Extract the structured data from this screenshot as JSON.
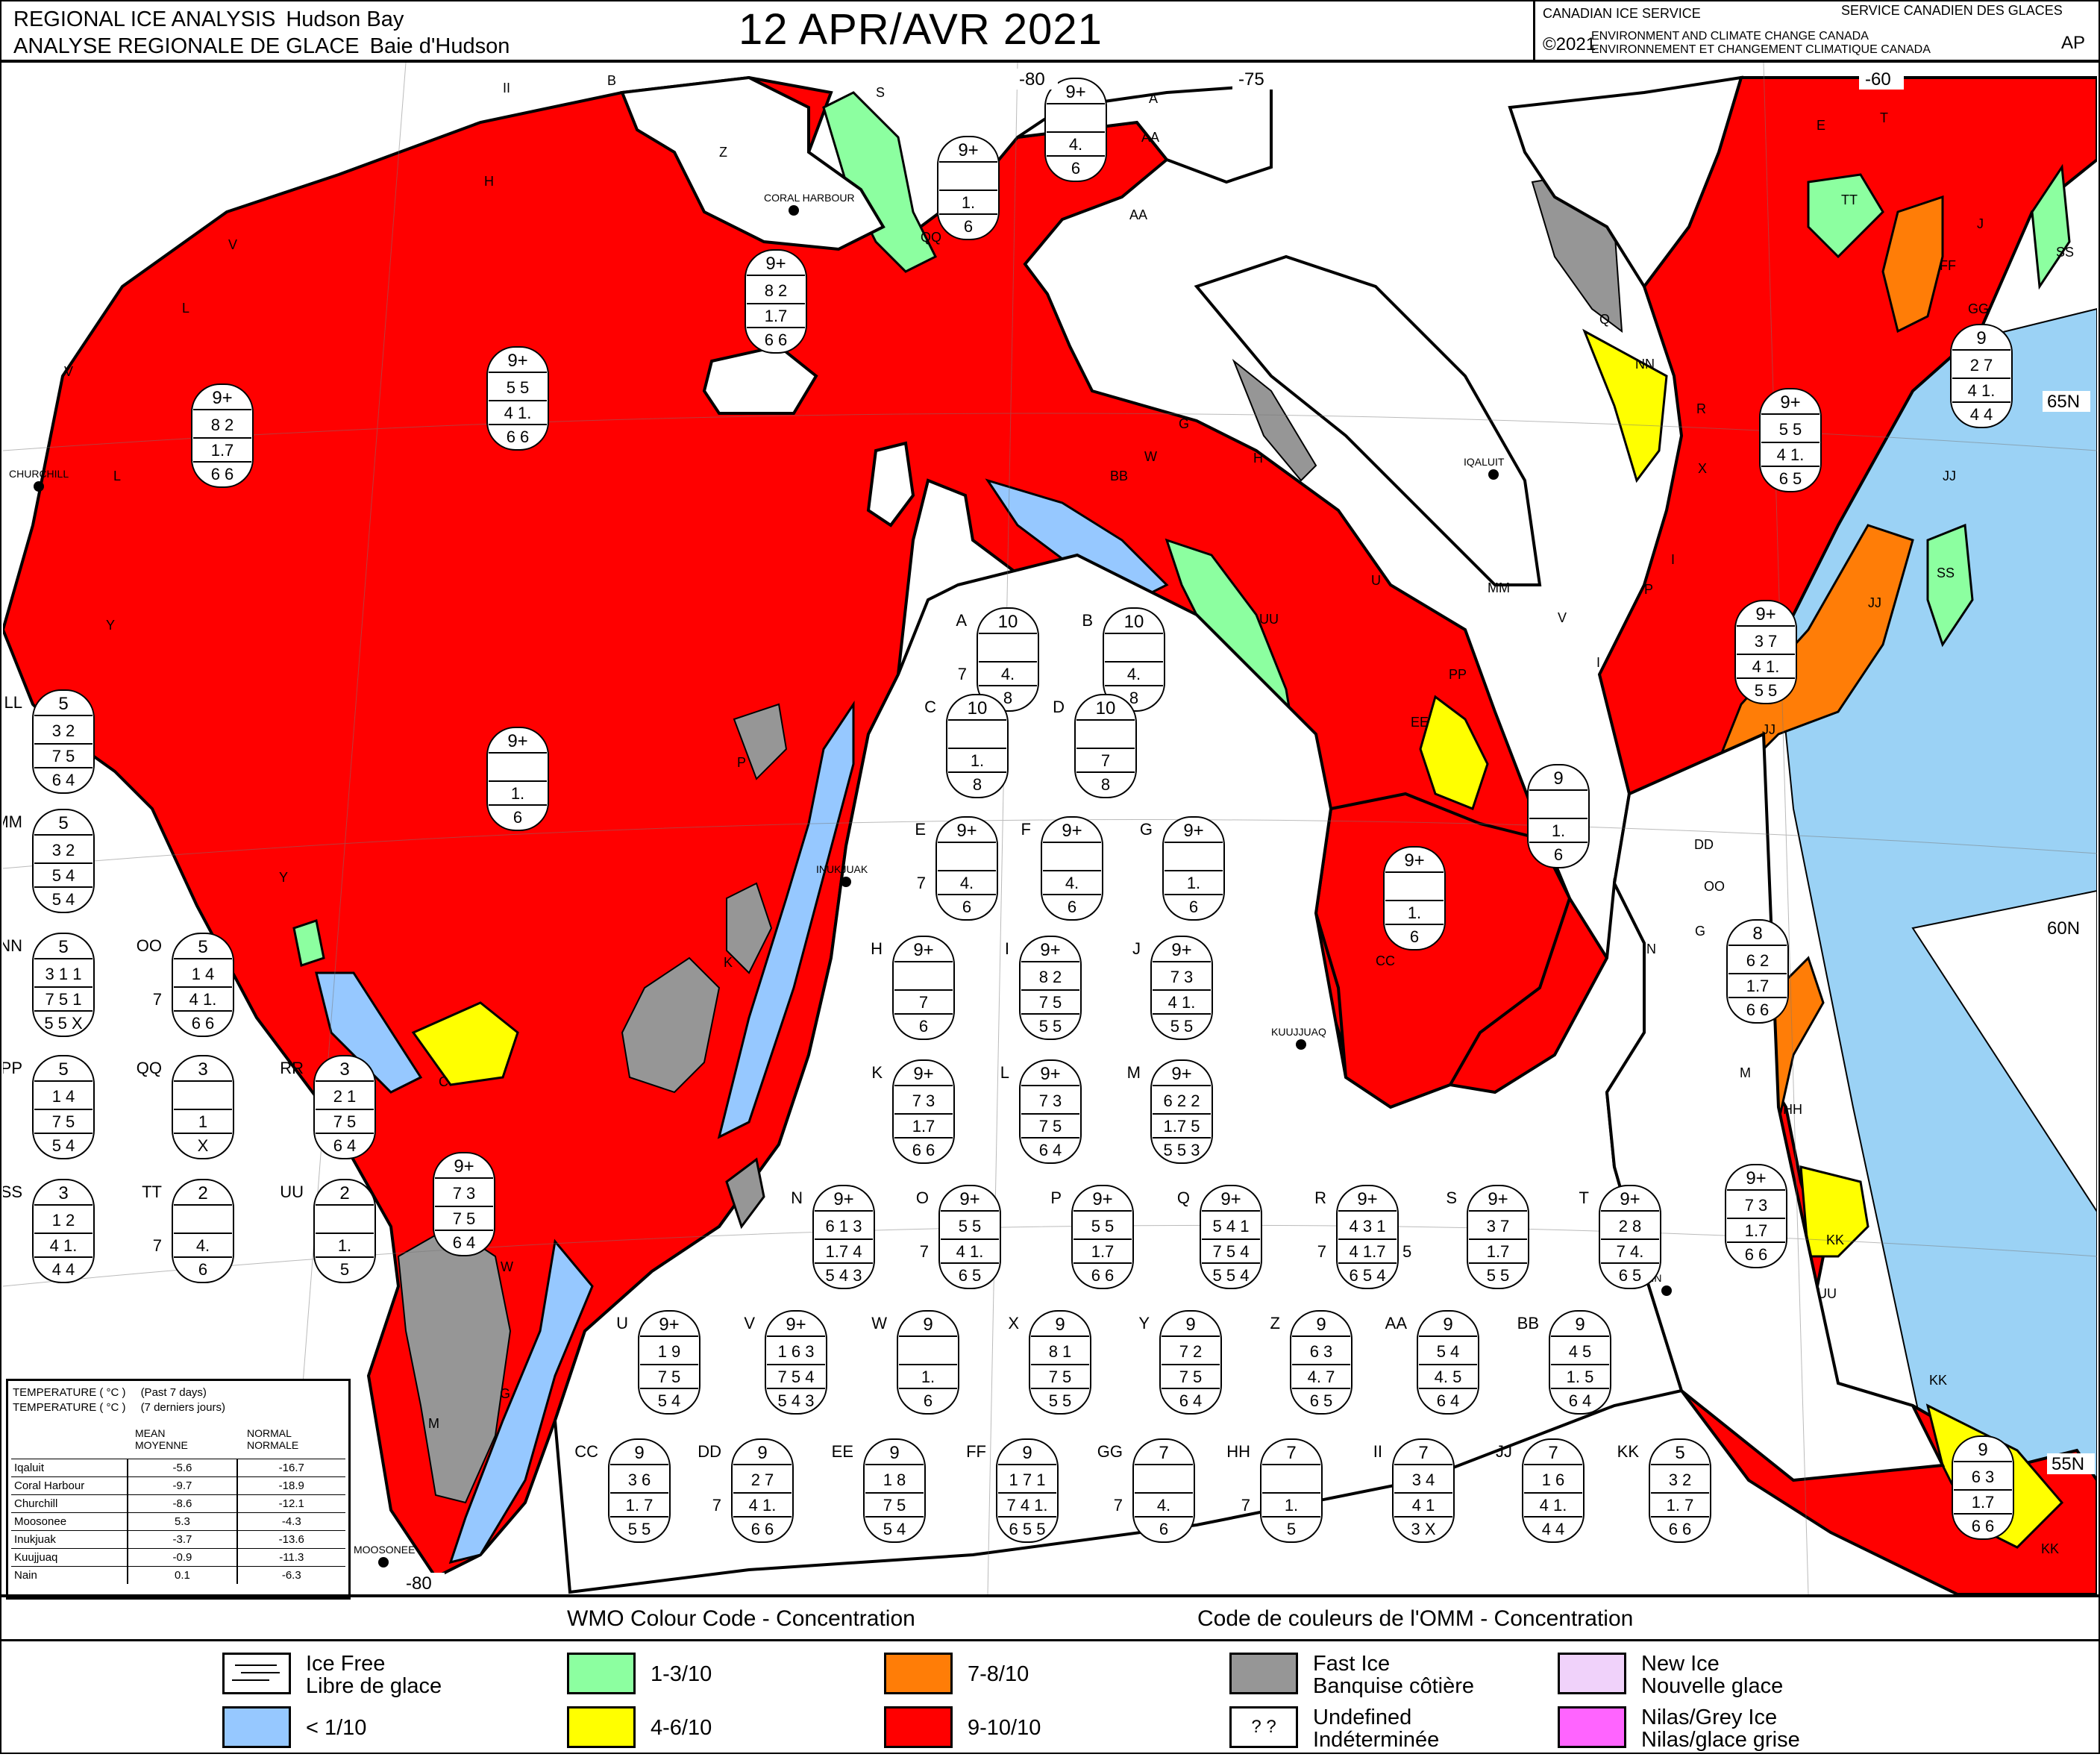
{
  "header": {
    "title_en": "REGIONAL ICE ANALYSIS",
    "region_en": "Hudson Bay",
    "title_fr": "ANALYSE REGIONALE DE GLACE",
    "region_fr": "Baie d'Hudson",
    "date": "12 APR/AVR 2021",
    "agency_en": "CANADIAN ICE SERVICE",
    "agency_fr": "SERVICE CANADIEN DES GLACES",
    "copyright": "©2021",
    "dept_en": "ENVIRONMENT AND CLIMATE CHANGE CANADA",
    "dept_fr": "ENVIRONNEMENT ET CHANGEMENT CLIMATIQUE CANADA",
    "product_code": "AP"
  },
  "map": {
    "longitude_labels": [
      "-80",
      "-75",
      "-60",
      "-80"
    ],
    "latitude_labels": [
      "65N",
      "60N",
      "55N"
    ],
    "places": [
      "CORAL HARBOUR",
      "CHURCHILL",
      "IQALUIT",
      "INUKJUAK",
      "KUUJJUAQ",
      "NAIN",
      "MOOSONEE"
    ],
    "colors": {
      "ice_free": "#ffffff",
      "lt_1_10": "#96c8ff",
      "c1_3_10": "#8cffa0",
      "c4_6_10": "#ffff00",
      "c7_8_10": "#ff7d07",
      "c9_10_10": "#ff0000",
      "fast_ice": "#969696",
      "new_ice": "#f0d2fa",
      "nilas_grey": "#ff64ff",
      "water_outside": "#9bd2f5",
      "land": "#ffffff"
    },
    "region_letters": [
      "B",
      "II",
      "H",
      "V",
      "L",
      "Y",
      "C",
      "W",
      "G",
      "M",
      "K",
      "P",
      "S",
      "QQ",
      "Z",
      "AA",
      "R",
      "NN",
      "Q",
      "TT",
      "E",
      "T",
      "J",
      "FF",
      "GG",
      "SS",
      "X",
      "JJ",
      "MM",
      "PP",
      "EE",
      "U",
      "UU",
      "I",
      "DD",
      "OO",
      "N",
      "HH",
      "KK",
      "CC",
      "A",
      "D",
      "RR",
      "LL",
      "BB"
    ],
    "map_eggs": [
      {
        "c": "9+",
        "r2": "",
        "r3": "4.",
        "r4": "6"
      },
      {
        "c": "9+",
        "r2": "",
        "r3": "1.",
        "r4": "6"
      },
      {
        "c": "9+",
        "r2": "8 2",
        "r3": "1.7",
        "r4": "6 6"
      },
      {
        "c": "9+",
        "r2": "5 5",
        "r3": "4 1.",
        "r4": "6 6"
      },
      {
        "c": "9+",
        "r2": "8 2",
        "r3": "1.7",
        "r4": "6 6"
      },
      {
        "c": "9+",
        "r2": "",
        "r3": "1.",
        "r4": "6"
      },
      {
        "c": "9+",
        "r2": "7 3",
        "r3": "7 5",
        "r4": "6 4"
      },
      {
        "c": "9",
        "r2": "",
        "r3": "1.",
        "r4": "6"
      },
      {
        "c": "9+",
        "r2": "",
        "r3": "1.",
        "r4": "6"
      },
      {
        "c": "9",
        "r2": "2 7",
        "r3": "4 1.",
        "r4": "4 4"
      },
      {
        "c": "9+",
        "r2": "5 5",
        "r3": "4 1.",
        "r4": "6 5"
      },
      {
        "c": "9+",
        "r2": "3 7",
        "r3": "4 1.",
        "r4": "5 5"
      },
      {
        "c": "8",
        "r2": "6 2",
        "r3": "1.7",
        "r4": "6 6"
      },
      {
        "c": "9+",
        "r2": "7 3",
        "r3": "1.7",
        "r4": "6 6"
      },
      {
        "c": "9",
        "r2": "6 3",
        "r3": "1.7",
        "r4": "6 6"
      }
    ]
  },
  "egg_codes": [
    {
      "id": "A",
      "c": "10",
      "r2": "",
      "r3": "4.",
      "r4": "8",
      "side": "7"
    },
    {
      "id": "B",
      "c": "10",
      "r2": "",
      "r3": "4.",
      "r4": "8",
      "side": ""
    },
    {
      "id": "C",
      "c": "10",
      "r2": "",
      "r3": "1.",
      "r4": "8",
      "side": ""
    },
    {
      "id": "D",
      "c": "10",
      "r2": "",
      "r3": "7",
      "r4": "8",
      "side": ""
    },
    {
      "id": "E",
      "c": "9+",
      "r2": "",
      "r3": "4.",
      "r4": "6",
      "side": "7"
    },
    {
      "id": "F",
      "c": "9+",
      "r2": "",
      "r3": "4.",
      "r4": "6",
      "side": ""
    },
    {
      "id": "G",
      "c": "9+",
      "r2": "",
      "r3": "1.",
      "r4": "6",
      "side": ""
    },
    {
      "id": "H",
      "c": "9+",
      "r2": "",
      "r3": "7",
      "r4": "6",
      "side": ""
    },
    {
      "id": "I",
      "c": "9+",
      "r2": "8 2",
      "r3": "7 5",
      "r4": "5 5",
      "side": ""
    },
    {
      "id": "J",
      "c": "9+",
      "r2": "7 3",
      "r3": "4 1.",
      "r4": "5 5",
      "side": ""
    },
    {
      "id": "K",
      "c": "9+",
      "r2": "7 3",
      "r3": "1.7",
      "r4": "6 6",
      "side": ""
    },
    {
      "id": "L",
      "c": "9+",
      "r2": "7 3",
      "r3": "7 5",
      "r4": "6 4",
      "side": ""
    },
    {
      "id": "M",
      "c": "9+",
      "r2": "6 2 2",
      "r3": "1.7 5",
      "r4": "5 5 3",
      "side": ""
    },
    {
      "id": "N",
      "c": "9+",
      "r2": "6 1 3",
      "r3": "1.7 4",
      "r4": "5 4 3",
      "side": ""
    },
    {
      "id": "O",
      "c": "9+",
      "r2": "5 5",
      "r3": "4 1.",
      "r4": "6 5",
      "side": "7"
    },
    {
      "id": "P",
      "c": "9+",
      "r2": "5 5",
      "r3": "1.7",
      "r4": "6 6",
      "side": ""
    },
    {
      "id": "Q",
      "c": "9+",
      "r2": "5 4 1",
      "r3": "7 5 4",
      "r4": "5 5 4",
      "side": ""
    },
    {
      "id": "R",
      "c": "9+",
      "r2": "4 3 1",
      "r3": "4 1.7",
      "r4": "6 5 4",
      "side": "7",
      "side_r": "5"
    },
    {
      "id": "S",
      "c": "9+",
      "r2": "3 7",
      "r3": "1.7",
      "r4": "5 5",
      "side": ""
    },
    {
      "id": "T",
      "c": "9+",
      "r2": "2 8",
      "r3": "7 4.",
      "r4": "6 5",
      "side": ""
    },
    {
      "id": "U",
      "c": "9+",
      "r2": "1 9",
      "r3": "7 5",
      "r4": "5 4",
      "side": ""
    },
    {
      "id": "V",
      "c": "9+",
      "r2": "1 6 3",
      "r3": "7 5 4",
      "r4": "5 4 3",
      "side": ""
    },
    {
      "id": "W",
      "c": "9",
      "r2": "",
      "r3": "1.",
      "r4": "6",
      "side": ""
    },
    {
      "id": "X",
      "c": "9",
      "r2": "8 1",
      "r3": "7 5",
      "r4": "5 5",
      "side": ""
    },
    {
      "id": "Y",
      "c": "9",
      "r2": "7 2",
      "r3": "7 5",
      "r4": "6 4",
      "side": ""
    },
    {
      "id": "Z",
      "c": "9",
      "r2": "6 3",
      "r3": "4. 7",
      "r4": "6 5",
      "side": ""
    },
    {
      "id": "AA",
      "c": "9",
      "r2": "5 4",
      "r3": "4. 5",
      "r4": "6 4",
      "side": ""
    },
    {
      "id": "BB",
      "c": "9",
      "r2": "4 5",
      "r3": "1. 5",
      "r4": "6 4",
      "side": ""
    },
    {
      "id": "CC",
      "c": "9",
      "r2": "3 6",
      "r3": "1. 7",
      "r4": "5 5",
      "side": ""
    },
    {
      "id": "DD",
      "c": "9",
      "r2": "2 7",
      "r3": "4 1.",
      "r4": "6 6",
      "side": "7"
    },
    {
      "id": "EE",
      "c": "9",
      "r2": "1 8",
      "r3": "7 5",
      "r4": "5 4",
      "side": ""
    },
    {
      "id": "FF",
      "c": "9",
      "r2": "1 7 1",
      "r3": "7 4 1.",
      "r4": "6 5 5",
      "side": ""
    },
    {
      "id": "GG",
      "c": "7",
      "r2": "",
      "r3": "4.",
      "r4": "6",
      "side": "7"
    },
    {
      "id": "HH",
      "c": "7",
      "r2": "",
      "r3": "1.",
      "r4": "5",
      "side": "7"
    },
    {
      "id": "II",
      "c": "7",
      "r2": "3 4",
      "r3": "4 1",
      "r4": "3 X",
      "side": ""
    },
    {
      "id": "JJ",
      "c": "7",
      "r2": "1 6",
      "r3": "4 1.",
      "r4": "4 4",
      "side": ""
    },
    {
      "id": "KK",
      "c": "5",
      "r2": "3 2",
      "r3": "1. 7",
      "r4": "6 6",
      "side": ""
    },
    {
      "id": "LL",
      "c": "5",
      "r2": "3 2",
      "r3": "7 5",
      "r4": "6 4",
      "side": ""
    },
    {
      "id": "MM",
      "c": "5",
      "r2": "3 2",
      "r3": "5 4",
      "r4": "5 4",
      "side": ""
    },
    {
      "id": "NN",
      "c": "5",
      "r2": "3 1 1",
      "r3": "7 5 1",
      "r4": "5 5 X",
      "side": ""
    },
    {
      "id": "OO",
      "c": "5",
      "r2": "1 4",
      "r3": "4 1.",
      "r4": "6 6",
      "side": "7"
    },
    {
      "id": "PP",
      "c": "5",
      "r2": "1 4",
      "r3": "7 5",
      "r4": "5 4",
      "side": ""
    },
    {
      "id": "QQ",
      "c": "3",
      "r2": "",
      "r3": "1",
      "r4": "X",
      "side": ""
    },
    {
      "id": "RR",
      "c": "3",
      "r2": "2 1",
      "r3": "7 5",
      "r4": "6 4",
      "side": ""
    },
    {
      "id": "SS",
      "c": "3",
      "r2": "1 2",
      "r3": "4 1.",
      "r4": "4 4",
      "side": ""
    },
    {
      "id": "TT",
      "c": "2",
      "r2": "",
      "r3": "4.",
      "r4": "6",
      "side": "7"
    },
    {
      "id": "UU",
      "c": "2",
      "r2": "",
      "r3": "1.",
      "r4": "5",
      "side": ""
    }
  ],
  "temperature": {
    "label_en": "TEMPERATURE ( °C )",
    "period_en": "(Past 7 days)",
    "label_fr": "TEMPERATURE ( °C )",
    "period_fr": "(7 derniers jours)",
    "col_mean_en": "MEAN",
    "col_mean_fr": "MOYENNE",
    "col_normal_en": "NORMAL",
    "col_normal_fr": "NORMALE",
    "rows": [
      {
        "station": "Iqaluit",
        "mean": "-5.6",
        "normal": "-16.7"
      },
      {
        "station": "Coral Harbour",
        "mean": "-9.7",
        "normal": "-18.9"
      },
      {
        "station": "Churchill",
        "mean": "-8.6",
        "normal": "-12.1"
      },
      {
        "station": "Moosonee",
        "mean": "5.3",
        "normal": "-4.3"
      },
      {
        "station": "Inukjuak",
        "mean": "-3.7",
        "normal": "-13.6"
      },
      {
        "station": "Kuujjuaq",
        "mean": "-0.9",
        "normal": "-11.3"
      },
      {
        "station": "Nain",
        "mean": "0.1",
        "normal": "-6.3"
      }
    ]
  },
  "legend": {
    "title_en": "WMO Colour Code - Concentration",
    "title_fr": "Code de couleurs de l'OMM - Concentration",
    "ice_free_en": "Ice Free",
    "ice_free_fr": "Libre de glace",
    "lt1": "< 1/10",
    "c13": "1-3/10",
    "c46": "4-6/10",
    "c78": "7-8/10",
    "c910": "9-10/10",
    "fast_en": "Fast Ice",
    "fast_fr": "Banquise côtière",
    "undef_en": "Undefined",
    "undef_fr": "Indéterminée",
    "undef_symbol": "? ?",
    "new_en": "New Ice",
    "new_fr": "Nouvelle glace",
    "nilas_en": "Nilas/Grey Ice",
    "nilas_fr": "Nilas/glace grise"
  }
}
